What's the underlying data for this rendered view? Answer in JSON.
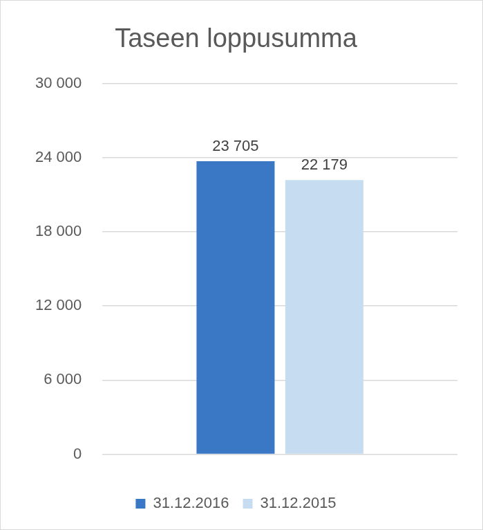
{
  "chart_data": {
    "type": "bar",
    "title": "Taseen loppusumma",
    "categories": [
      null
    ],
    "series": [
      {
        "name": "31.12.2016",
        "color": "#3a78c6",
        "values": [
          23705
        ],
        "value_labels": [
          "23 705"
        ]
      },
      {
        "name": "31.12.2015",
        "color": "#c6dcf0",
        "values": [
          22179
        ],
        "value_labels": [
          "22 179"
        ]
      }
    ],
    "ylim": [
      0,
      30000
    ],
    "yticks": [
      0,
      {
        "value": 6000,
        "label": "6 000"
      },
      {
        "value": 12000,
        "label": "12 000"
      },
      {
        "value": 18000,
        "label": "18 000"
      },
      {
        "value": 24000,
        "label": "24 000"
      },
      {
        "value": 30000,
        "label": "30 000"
      }
    ],
    "grid": true,
    "legend": "bottom",
    "data_labels": true
  }
}
